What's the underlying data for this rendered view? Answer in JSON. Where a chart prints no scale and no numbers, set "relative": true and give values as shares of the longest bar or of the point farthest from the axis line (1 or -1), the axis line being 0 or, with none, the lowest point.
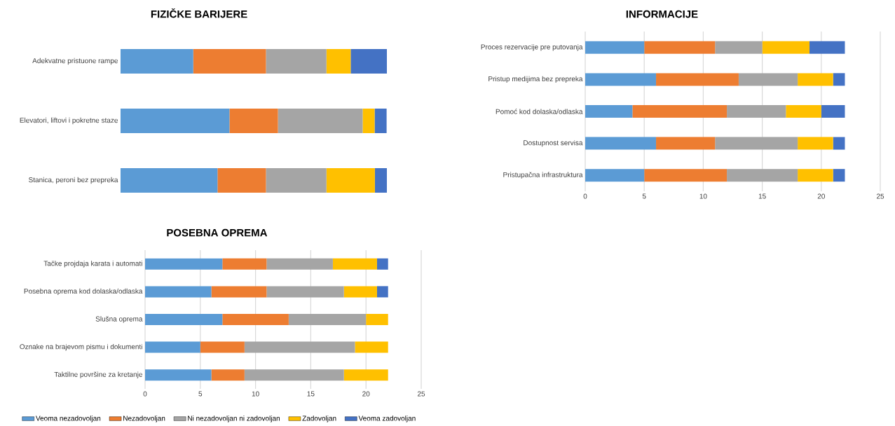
{
  "chart_data": [
    {
      "type": "bar",
      "orientation": "horizontal",
      "stacked": true,
      "relative": true,
      "tick_labels": "y",
      "title": "FIZIČKE BARIJERE",
      "categories": [
        "Adekvatne pristuone rampe",
        "Elevatori, liftovi i pokretne staze",
        "Stanica, peroni bez prepreka"
      ],
      "series": [
        {
          "color": "#5b9bd5",
          "values": [
            0.273,
            0.409,
            0.364
          ]
        },
        {
          "color": "#ed7d31",
          "values": [
            0.273,
            0.182,
            0.182
          ]
        },
        {
          "color": "#a5a5a5",
          "values": [
            0.227,
            0.318,
            0.227
          ]
        },
        {
          "color": "#ffc000",
          "values": [
            0.091,
            0.045,
            0.182
          ]
        },
        {
          "color": "#4472c4",
          "values": [
            0.136,
            0.045,
            0.045
          ]
        }
      ]
    },
    {
      "type": "bar",
      "orientation": "horizontal",
      "stacked": true,
      "title": "INFORMACIJE",
      "grid": "x",
      "categories": [
        "Proces rezervacije pre putovanja",
        "Pristup medijima bez prepreka",
        "Pomoć kod dolaska/odlaska",
        "Dostupnost servisa",
        "Pristupačna infrastruktura"
      ],
      "xlim": [
        0,
        25
      ],
      "xticks": [
        0,
        5,
        10,
        15,
        20,
        25
      ],
      "series": [
        {
          "color": "#5b9bd5",
          "values": [
            5,
            6,
            4,
            6,
            5
          ]
        },
        {
          "color": "#ed7d31",
          "values": [
            6,
            7,
            8,
            5,
            7
          ]
        },
        {
          "color": "#a5a5a5",
          "values": [
            4,
            5,
            5,
            7,
            6
          ]
        },
        {
          "color": "#ffc000",
          "values": [
            4,
            3,
            3,
            3,
            3
          ]
        },
        {
          "color": "#4472c4",
          "values": [
            3,
            1,
            2,
            1,
            1
          ]
        }
      ]
    },
    {
      "type": "bar",
      "orientation": "horizontal",
      "stacked": true,
      "title": "POSEBNA OPREMA",
      "grid": "x",
      "legend": "bottom",
      "categories": [
        "Tačke projdaja karata i automati",
        "Posebna oprema kod dolaska/odlaska",
        "Slušna oprema",
        "Oznake na brajevom pismu i dokumenti",
        "Taktilne površine  za kretanje"
      ],
      "xlim": [
        0,
        25
      ],
      "xticks": [
        0,
        5,
        10,
        15,
        20,
        25
      ],
      "series": [
        {
          "name": "Veoma nezadovoljan",
          "color": "#5b9bd5",
          "values": [
            7,
            6,
            7,
            5,
            6
          ]
        },
        {
          "name": "Nezadovoljan",
          "color": "#ed7d31",
          "values": [
            4,
            5,
            6,
            4,
            3
          ]
        },
        {
          "name": "Ni nezadovoljan ni zadovoljan",
          "color": "#a5a5a5",
          "values": [
            6,
            7,
            7,
            10,
            9
          ]
        },
        {
          "name": "Zadovoljan",
          "color": "#ffc000",
          "values": [
            4,
            3,
            2,
            3,
            4
          ]
        },
        {
          "name": "Veoma zadovoljan",
          "color": "#4472c4",
          "values": [
            1,
            1,
            null,
            null,
            null
          ]
        }
      ]
    }
  ]
}
